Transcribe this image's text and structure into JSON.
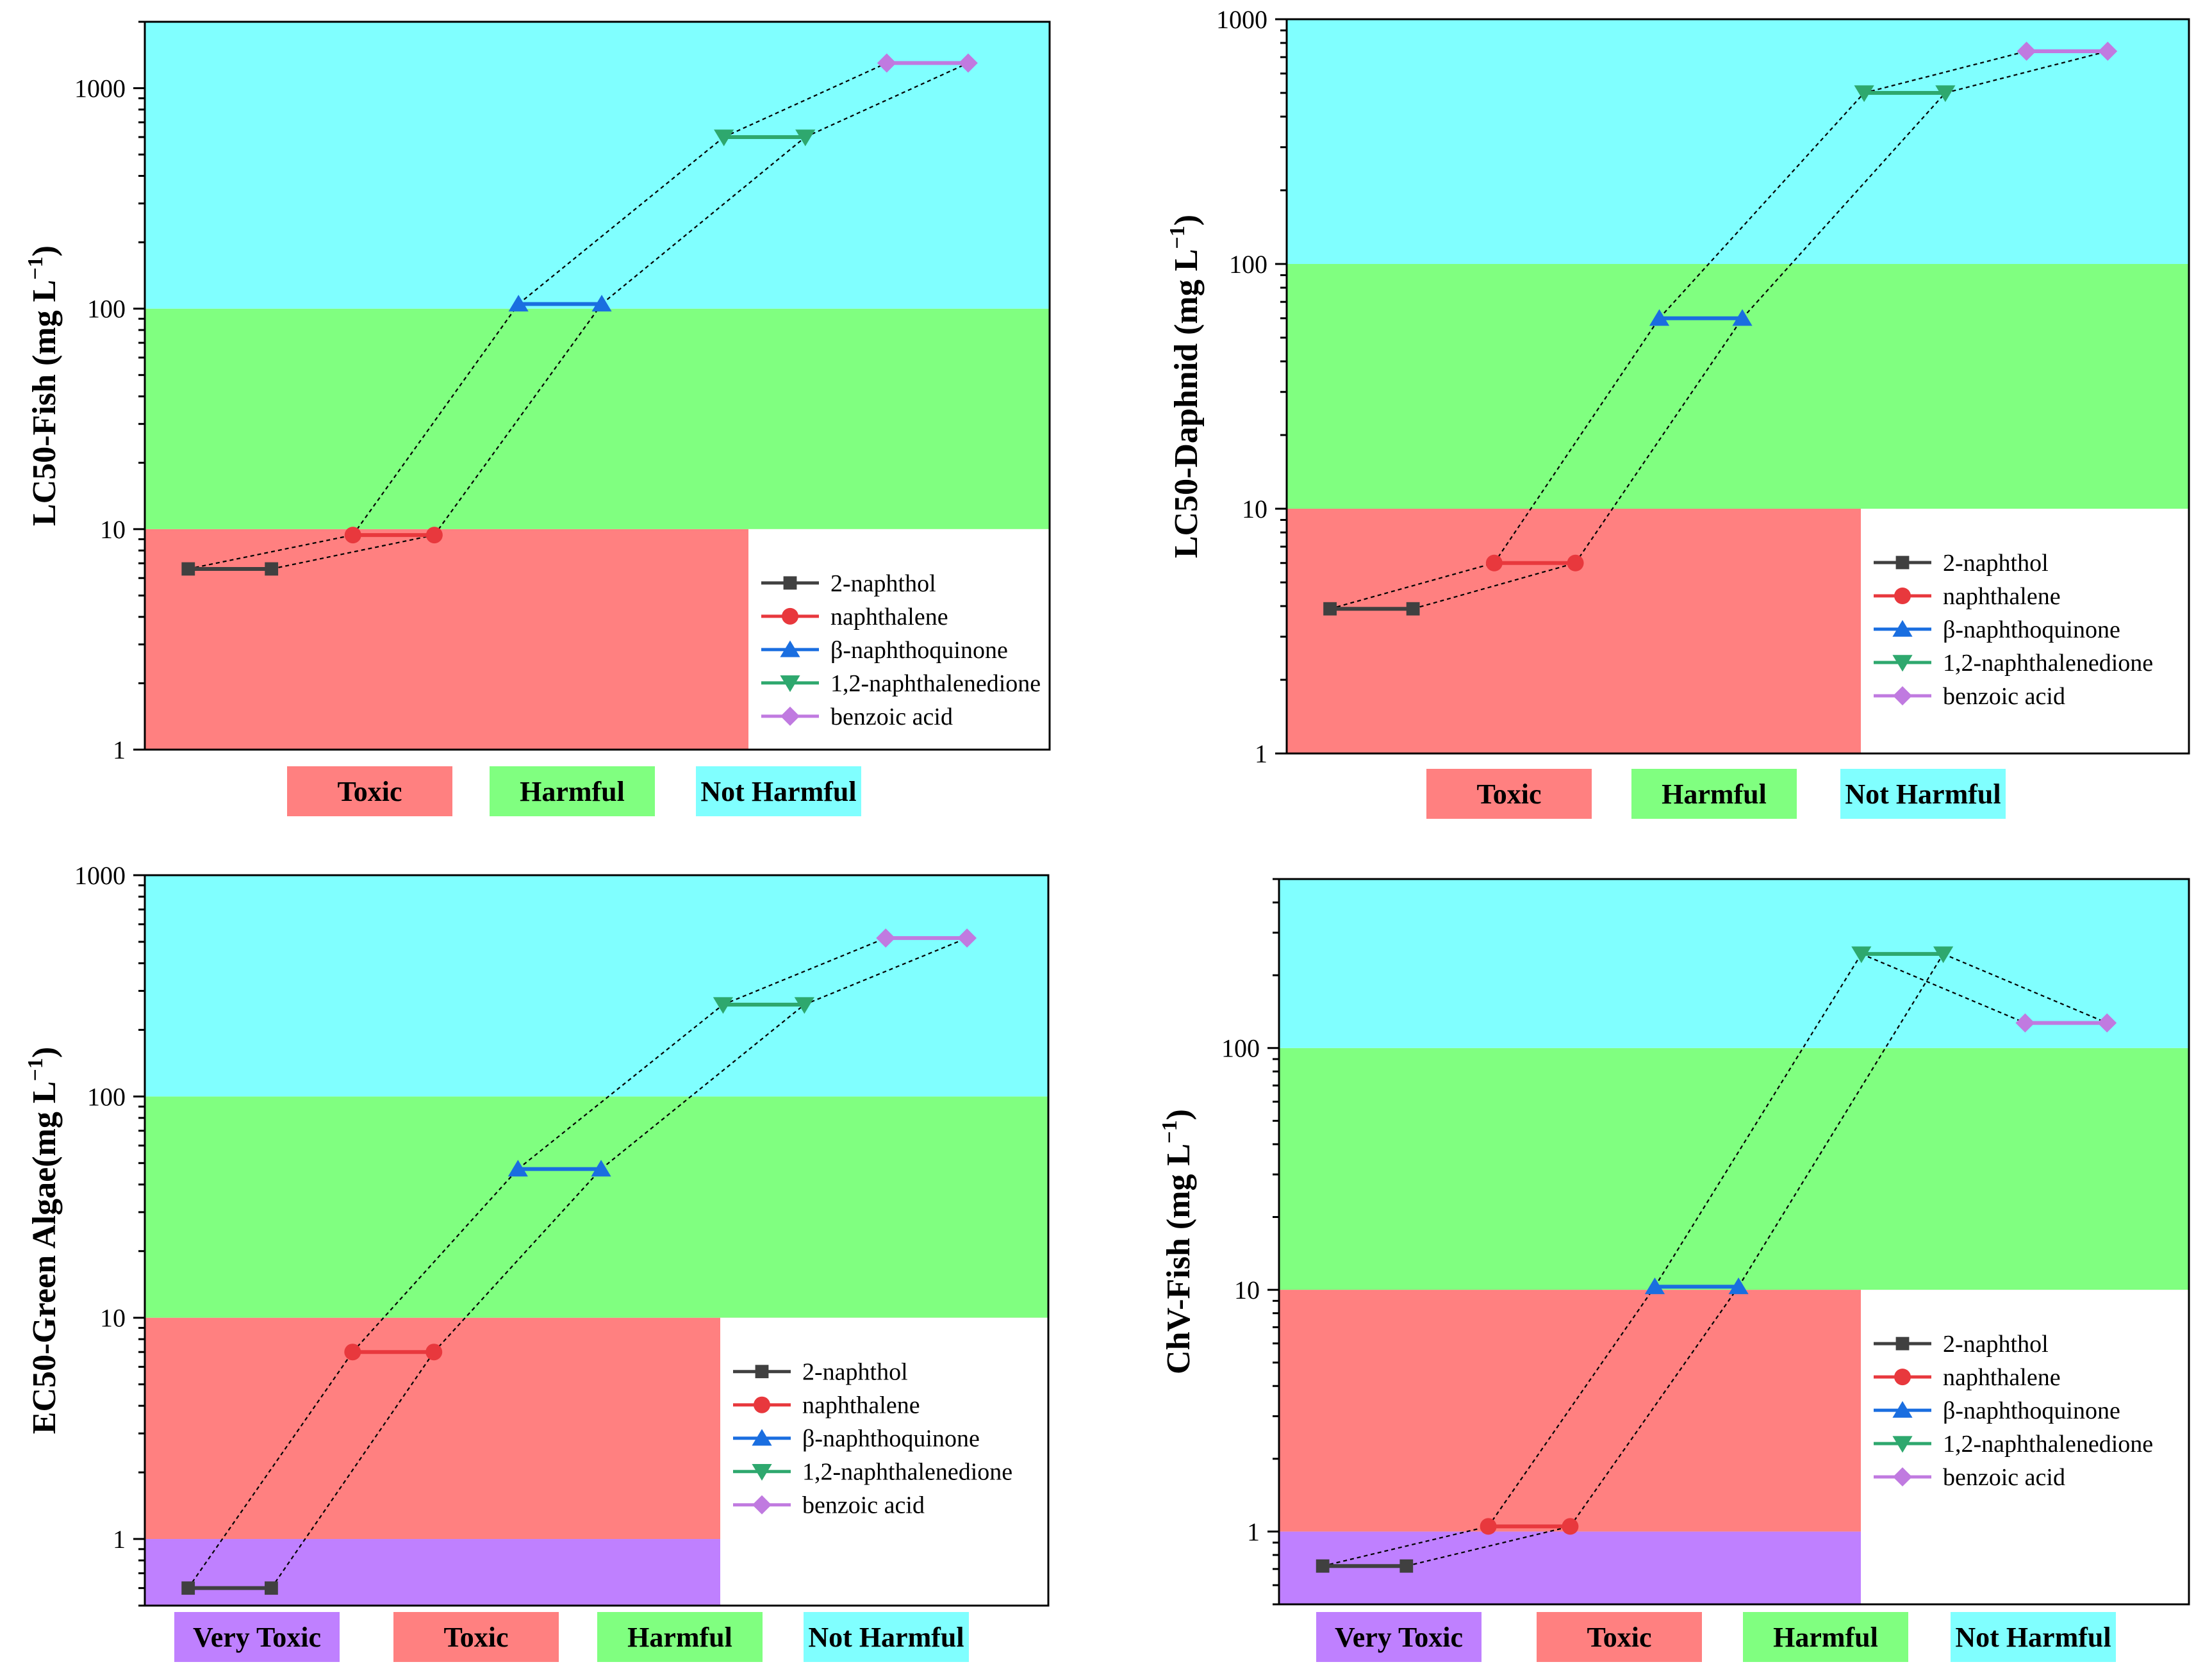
{
  "colors": {
    "very_toxic": "#bf80ff",
    "toxic": "#ff8080",
    "harmful": "#80ff80",
    "not_harmful": "#80ffff",
    "series": [
      "#404040",
      "#e8383d",
      "#1a6ee0",
      "#2ea86e",
      "#c07ae0"
    ]
  },
  "legend_labels": [
    "2-naphthol",
    "naphthalene",
    "β-naphthoquinone",
    "1,2-naphthalenedione",
    "benzoic acid"
  ],
  "panels": [
    {
      "id": "lc50-fish",
      "ylabel": "LC50-Fish (mg L",
      "ylabel_sup": "−1",
      "ylabel_close": ")",
      "categories": [
        "Toxic",
        "Harmful",
        "Not Harmful"
      ]
    },
    {
      "id": "lc50-daphnid",
      "ylabel": "LC50-Daphnid (mg L",
      "ylabel_sup": "−1",
      "ylabel_close": ")",
      "categories": [
        "Toxic",
        "Harmful",
        "Not Harmful"
      ]
    },
    {
      "id": "ec50-algae",
      "ylabel": "EC50-Green Algae(mg L",
      "ylabel_sup": "−1",
      "ylabel_close": ")",
      "categories": [
        "Very Toxic",
        "Toxic",
        "Harmful",
        "Not Harmful"
      ]
    },
    {
      "id": "chv-fish",
      "ylabel": "ChV-Fish (mg L",
      "ylabel_sup": "−1",
      "ylabel_close": ")",
      "categories": [
        "Very Toxic",
        "Toxic",
        "Harmful",
        "Not Harmful"
      ]
    }
  ],
  "chart_data": [
    {
      "type": "line",
      "ylabel": "LC50-Fish (mg L−1)",
      "yscale": "log",
      "ylim": [
        1,
        2000
      ],
      "yticks": [
        1,
        10,
        100,
        1000
      ],
      "bands": [
        {
          "label": "Toxic",
          "from": 1,
          "to": 10
        },
        {
          "label": "Harmful",
          "from": 10,
          "to": 100
        },
        {
          "label": "Not Harmful",
          "from": 100,
          "to": 2000
        }
      ],
      "series": [
        {
          "name": "2-naphthol",
          "values": [
            6.6,
            6.6
          ]
        },
        {
          "name": "naphthalene",
          "values": [
            9.4,
            9.4
          ]
        },
        {
          "name": "β-naphthoquinone",
          "values": [
            105,
            105
          ]
        },
        {
          "name": "1,2-naphthalenedione",
          "values": [
            600,
            600
          ]
        },
        {
          "name": "benzoic acid",
          "values": [
            1300,
            1300
          ]
        }
      ],
      "legend": "bottom-right"
    },
    {
      "type": "line",
      "ylabel": "LC50-Daphnid (mg L−1)",
      "yscale": "log",
      "ylim": [
        1,
        1000
      ],
      "yticks": [
        1,
        10,
        100,
        1000
      ],
      "bands": [
        {
          "label": "Toxic",
          "from": 1,
          "to": 10
        },
        {
          "label": "Harmful",
          "from": 10,
          "to": 100
        },
        {
          "label": "Not Harmful",
          "from": 100,
          "to": 1000
        }
      ],
      "series": [
        {
          "name": "2-naphthol",
          "values": [
            3.9,
            3.9
          ]
        },
        {
          "name": "naphthalene",
          "values": [
            6.0,
            6.0
          ]
        },
        {
          "name": "β-naphthoquinone",
          "values": [
            60,
            60
          ]
        },
        {
          "name": "1,2-naphthalenedione",
          "values": [
            500,
            500
          ]
        },
        {
          "name": "benzoic acid",
          "values": [
            740,
            740
          ]
        }
      ],
      "legend": "bottom-right"
    },
    {
      "type": "line",
      "ylabel": "EC50-Green Algae(mg L−1)",
      "yscale": "log",
      "ylim": [
        0.5,
        1000
      ],
      "yticks": [
        1,
        10,
        100,
        1000
      ],
      "bands": [
        {
          "label": "Very Toxic",
          "from": 0.5,
          "to": 1
        },
        {
          "label": "Toxic",
          "from": 1,
          "to": 10
        },
        {
          "label": "Harmful",
          "from": 10,
          "to": 100
        },
        {
          "label": "Not Harmful",
          "from": 100,
          "to": 1000
        }
      ],
      "series": [
        {
          "name": "2-naphthol",
          "values": [
            0.6,
            0.6
          ]
        },
        {
          "name": "naphthalene",
          "values": [
            7.0,
            7.0
          ]
        },
        {
          "name": "β-naphthoquinone",
          "values": [
            47,
            47
          ]
        },
        {
          "name": "1,2-naphthalenedione",
          "values": [
            260,
            260
          ]
        },
        {
          "name": "benzoic acid",
          "values": [
            520,
            520
          ]
        }
      ],
      "legend": "bottom-right"
    },
    {
      "type": "line",
      "ylabel": "ChV-Fish (mg L−1)",
      "yscale": "log",
      "ylim": [
        0.5,
        500
      ],
      "yticks": [
        1,
        10,
        100
      ],
      "bands": [
        {
          "label": "Very Toxic",
          "from": 0.5,
          "to": 1
        },
        {
          "label": "Toxic",
          "from": 1,
          "to": 10
        },
        {
          "label": "Harmful",
          "from": 10,
          "to": 100
        },
        {
          "label": "Not Harmful",
          "from": 100,
          "to": 500
        }
      ],
      "series": [
        {
          "name": "2-naphthol",
          "values": [
            0.72,
            0.72
          ]
        },
        {
          "name": "naphthalene",
          "values": [
            1.05,
            1.05
          ]
        },
        {
          "name": "β-naphthoquinone",
          "values": [
            10.3,
            10.3
          ]
        },
        {
          "name": "1,2-naphthalenedione",
          "values": [
            245,
            245
          ]
        },
        {
          "name": "benzoic acid",
          "values": [
            127,
            127
          ]
        }
      ],
      "legend": "bottom-right"
    }
  ]
}
